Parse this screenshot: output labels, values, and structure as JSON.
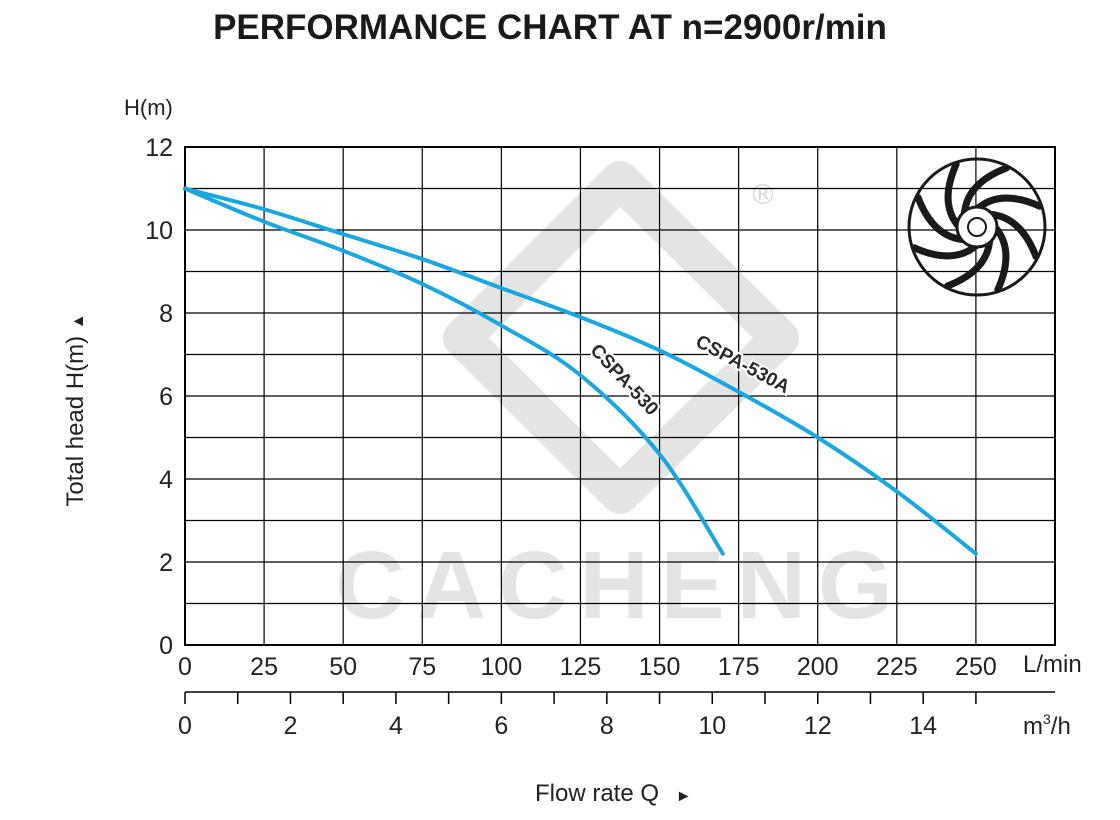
{
  "title": "PERFORMANCE CHART AT n=2900r/min",
  "y_axis_label": "Total  head H(m)",
  "y_arrow": "▲",
  "x_axis_label": "Flow rate  Q",
  "x_arrow": "►",
  "y_unit": "H(m)",
  "x_unit_primary": "L/min",
  "x_unit_secondary_base": "m",
  "x_unit_secondary_sup": "3",
  "x_unit_secondary_tail": "/h",
  "watermark_text": "CACHENG",
  "registered_mark": "®",
  "colors": {
    "curve": "#1aa6de",
    "grid": "#000000",
    "watermark": "#e4e4e4"
  },
  "icon": "impeller-icon",
  "chart_data": {
    "type": "line",
    "title": "PERFORMANCE CHART AT n=2900r/min",
    "xlabel": "Flow rate  Q",
    "ylabel": "Total  head H(m)",
    "xlim": [
      0,
      275
    ],
    "ylim": [
      0,
      12
    ],
    "grid": true,
    "x_ticks": [
      0,
      25,
      50,
      75,
      100,
      125,
      150,
      175,
      200,
      225,
      250
    ],
    "y_ticks": [
      0,
      2,
      4,
      6,
      8,
      10,
      12
    ],
    "secondary_x_ticks": [
      0,
      2,
      4,
      6,
      8,
      10,
      12,
      14
    ],
    "series": [
      {
        "name": "CSPA-530",
        "x": [
          0,
          25,
          50,
          75,
          100,
          125,
          150,
          170
        ],
        "y": [
          11,
          10.2,
          9.5,
          8.7,
          7.7,
          6.5,
          4.6,
          2.2
        ]
      },
      {
        "name": "CSPA-530A",
        "x": [
          0,
          25,
          50,
          75,
          100,
          125,
          150,
          175,
          200,
          225,
          250
        ],
        "y": [
          11,
          10.5,
          9.9,
          9.3,
          8.6,
          7.9,
          7.1,
          6.1,
          5.0,
          3.7,
          2.2
        ]
      }
    ]
  }
}
